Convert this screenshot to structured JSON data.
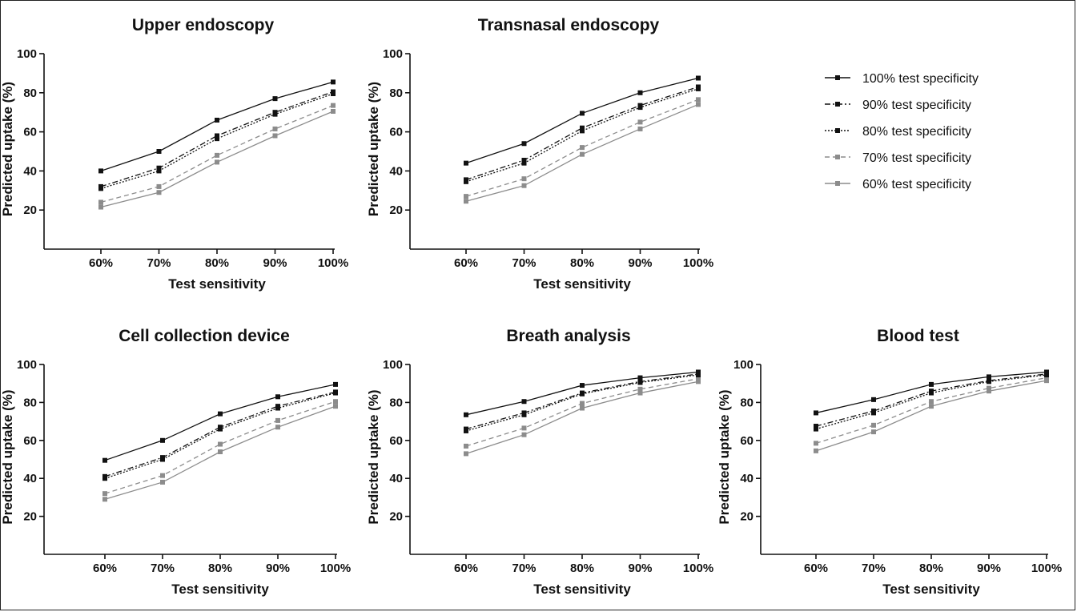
{
  "chart_data": [
    {
      "type": "line",
      "title": "Upper endoscopy",
      "xlabel": "Test sensitivity",
      "ylabel": "Predicted uptake (%)",
      "categories": [
        "60%",
        "70%",
        "80%",
        "90%",
        "100%"
      ],
      "ylim": [
        0,
        100
      ],
      "yticks": [
        20,
        40,
        60,
        80,
        100
      ],
      "series": [
        {
          "name": "100% test specificity",
          "values": [
            40,
            50,
            66,
            77,
            85.5
          ]
        },
        {
          "name": "90% test specificity",
          "values": [
            32,
            41.5,
            58,
            70,
            80.5
          ]
        },
        {
          "name": "80% test specificity",
          "values": [
            31,
            40,
            56.5,
            69,
            79.5
          ]
        },
        {
          "name": "70% test specificity",
          "values": [
            24,
            32,
            48,
            61.5,
            73.5
          ]
        },
        {
          "name": "60% test specificity",
          "values": [
            21.5,
            29,
            44.5,
            58,
            70.5
          ]
        }
      ]
    },
    {
      "type": "line",
      "title": "Transnasal endoscopy",
      "xlabel": "Test sensitivity",
      "ylabel": "Predicted uptake (%)",
      "categories": [
        "60%",
        "70%",
        "80%",
        "90%",
        "100%"
      ],
      "ylim": [
        0,
        100
      ],
      "yticks": [
        20,
        40,
        60,
        80,
        100
      ],
      "series": [
        {
          "name": "100% test specificity",
          "values": [
            44,
            54,
            69.5,
            80,
            87.5
          ]
        },
        {
          "name": "90% test specificity",
          "values": [
            35.5,
            45.5,
            62,
            73.5,
            83
          ]
        },
        {
          "name": "80% test specificity",
          "values": [
            34.5,
            44,
            60.5,
            72.5,
            82
          ]
        },
        {
          "name": "70% test specificity",
          "values": [
            27,
            36,
            52,
            65,
            76.5
          ]
        },
        {
          "name": "60% test specificity",
          "values": [
            24.5,
            32.5,
            48.5,
            61.5,
            74
          ]
        }
      ]
    },
    {
      "type": "line",
      "title": "Cell collection device",
      "xlabel": "Test sensitivity",
      "ylabel": "Predicted uptake (%)",
      "categories": [
        "60%",
        "70%",
        "80%",
        "90%",
        "100%"
      ],
      "ylim": [
        0,
        100
      ],
      "yticks": [
        20,
        40,
        60,
        80,
        100
      ],
      "series": [
        {
          "name": "100% test specificity",
          "values": [
            49.5,
            60,
            74,
            83,
            89.5
          ]
        },
        {
          "name": "90% test specificity",
          "values": [
            41,
            51,
            67,
            78,
            85.5
          ]
        },
        {
          "name": "80% test specificity",
          "values": [
            40,
            50,
            66,
            77,
            85
          ]
        },
        {
          "name": "70% test specificity",
          "values": [
            32,
            41.5,
            58,
            70.5,
            80.5
          ]
        },
        {
          "name": "60% test specificity",
          "values": [
            29,
            38,
            54,
            67,
            78
          ]
        }
      ]
    },
    {
      "type": "line",
      "title": "Breath analysis",
      "xlabel": "Test sensitivity",
      "ylabel": "Predicted uptake (%)",
      "categories": [
        "60%",
        "70%",
        "80%",
        "90%",
        "100%"
      ],
      "ylim": [
        0,
        100
      ],
      "yticks": [
        20,
        40,
        60,
        80,
        100
      ],
      "series": [
        {
          "name": "100% test specificity",
          "values": [
            73.5,
            80.5,
            89,
            93,
            96
          ]
        },
        {
          "name": "90% test specificity",
          "values": [
            66,
            74.5,
            85,
            91,
            95
          ]
        },
        {
          "name": "80% test specificity",
          "values": [
            65,
            73.5,
            84.5,
            90.5,
            94.5
          ]
        },
        {
          "name": "70% test specificity",
          "values": [
            57,
            66.5,
            79.5,
            87,
            92.5
          ]
        },
        {
          "name": "60% test specificity",
          "values": [
            53,
            63,
            77,
            85,
            91
          ]
        }
      ]
    },
    {
      "type": "line",
      "title": "Blood test",
      "xlabel": "Test sensitivity",
      "ylabel": "Predicted uptake (%)",
      "categories": [
        "60%",
        "70%",
        "80%",
        "90%",
        "100%"
      ],
      "ylim": [
        0,
        100
      ],
      "yticks": [
        20,
        40,
        60,
        80,
        100
      ],
      "series": [
        {
          "name": "100% test specificity",
          "values": [
            74.5,
            81.5,
            89.5,
            93.5,
            96
          ]
        },
        {
          "name": "90% test specificity",
          "values": [
            67.5,
            75.5,
            86,
            91.5,
            95
          ]
        },
        {
          "name": "80% test specificity",
          "values": [
            66,
            74.5,
            85,
            91,
            94.5
          ]
        },
        {
          "name": "70% test specificity",
          "values": [
            58.5,
            68,
            80.5,
            87.5,
            93
          ]
        },
        {
          "name": "60% test specificity",
          "values": [
            54.5,
            64.5,
            78,
            86,
            91.5
          ]
        }
      ]
    }
  ],
  "legend": {
    "placement": "top-right",
    "items": [
      {
        "label": "100% test specificity",
        "color": "#111111",
        "dash": "solid"
      },
      {
        "label": "90% test specificity",
        "color": "#111111",
        "dash": "dash-dot"
      },
      {
        "label": "80% test specificity",
        "color": "#111111",
        "dash": "dotted"
      },
      {
        "label": "70% test specificity",
        "color": "#8c8c8c",
        "dash": "dashed"
      },
      {
        "label": "60% test specificity",
        "color": "#8c8c8c",
        "dash": "solid"
      }
    ]
  }
}
